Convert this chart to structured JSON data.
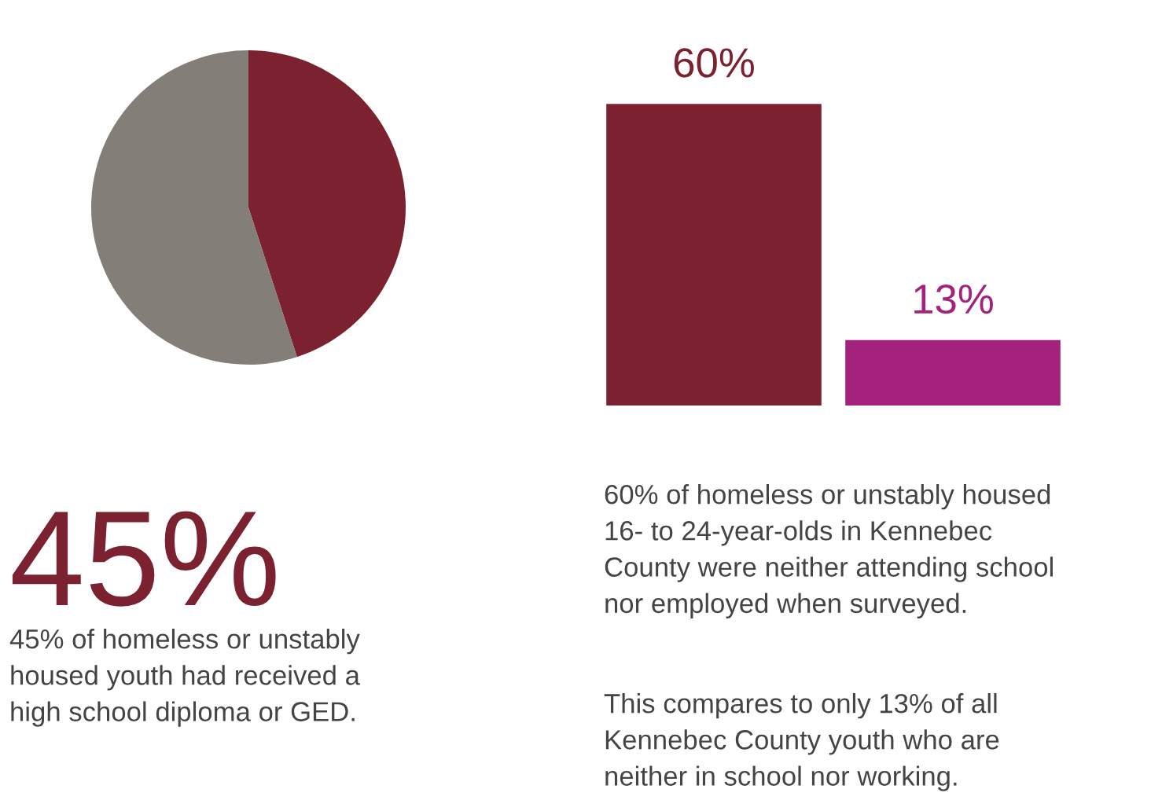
{
  "chart_data": [
    {
      "type": "pie",
      "categories": [
        null,
        null
      ],
      "values": [
        45,
        55
      ],
      "colors": [
        "#7b2130",
        "#837e78"
      ],
      "annotations": [
        "45%",
        "45% of homeless or unstably\nhoused youth had received a\nhigh school diploma or GED."
      ]
    },
    {
      "type": "bar",
      "categories": [
        null,
        null
      ],
      "values": [
        60,
        13
      ],
      "colors": [
        "#7b2130",
        "#a4217e"
      ],
      "value_labels": [
        "60%",
        "13%"
      ],
      "annotations": [
        "60% of homeless or unstably housed\n16- to 24-year-olds in Kennebec\nCounty were neither attending school\nnor employed when surveyed.",
        "This compares to only 13% of all\nKennebec County youth who are\nneither in school nor working."
      ]
    }
  ]
}
